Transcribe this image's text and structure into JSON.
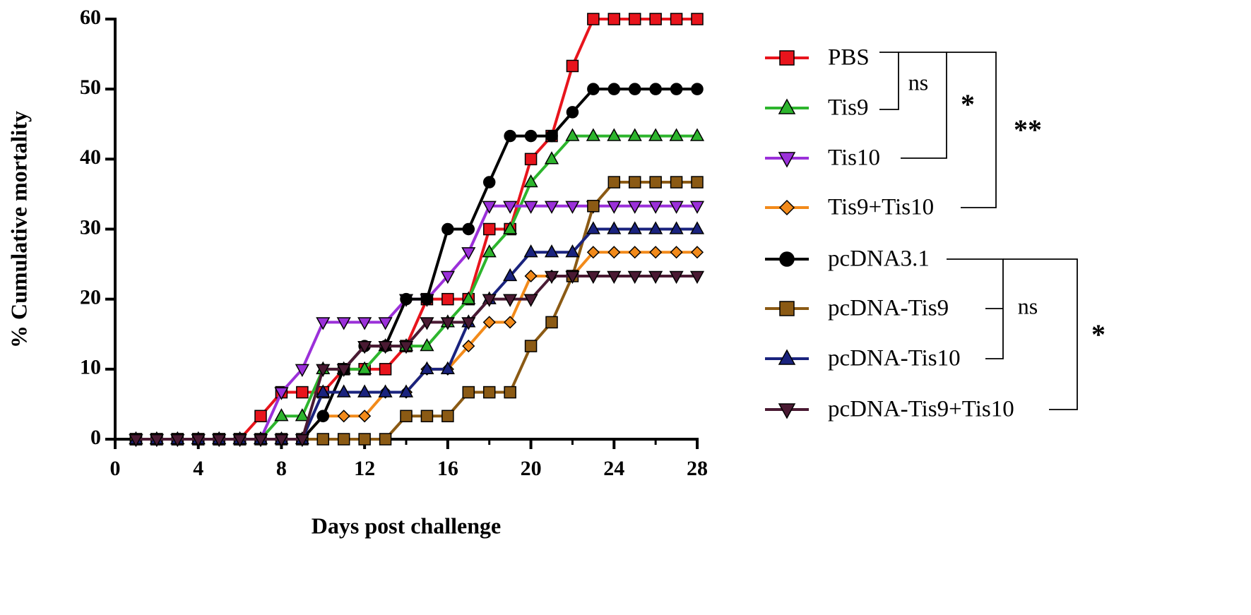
{
  "chart_data": {
    "type": "line",
    "x_label": "Days post challenge",
    "y_label": "% Cumulative mortality",
    "x": [
      1,
      2,
      3,
      4,
      5,
      6,
      7,
      8,
      9,
      10,
      11,
      12,
      13,
      14,
      15,
      16,
      17,
      18,
      19,
      20,
      21,
      22,
      23,
      24,
      25,
      26,
      27,
      28
    ],
    "xlim": [
      0,
      28
    ],
    "xticks": [
      0,
      4,
      8,
      12,
      16,
      20,
      24,
      28
    ],
    "ylim": [
      0,
      60
    ],
    "yticks": [
      0,
      10,
      20,
      30,
      40,
      50,
      60
    ],
    "legend": "right",
    "series": [
      {
        "name": "PBS",
        "color": "#e8141c",
        "marker": "square",
        "values": [
          0,
          0,
          0,
          0,
          0,
          0,
          3.3,
          6.7,
          6.7,
          6.7,
          10,
          10,
          10,
          13.3,
          20,
          20,
          20,
          30,
          30,
          40,
          43.3,
          53.3,
          60,
          60,
          60,
          60,
          60,
          60
        ]
      },
      {
        "name": "Tis9",
        "color": "#2db52d",
        "marker": "triangle-up",
        "values": [
          0,
          0,
          0,
          0,
          0,
          0,
          0,
          3.3,
          3.3,
          10,
          10,
          10,
          13.3,
          13.3,
          13.3,
          16.7,
          20,
          26.7,
          30,
          36.7,
          40,
          43.3,
          43.3,
          43.3,
          43.3,
          43.3,
          43.3,
          43.3
        ]
      },
      {
        "name": "Tis10",
        "color": "#9b30d9",
        "marker": "triangle-down",
        "values": [
          0,
          0,
          0,
          0,
          0,
          0,
          0,
          6.7,
          10,
          16.7,
          16.7,
          16.7,
          16.7,
          20,
          20,
          23.3,
          26.7,
          33.3,
          33.3,
          33.3,
          33.3,
          33.3,
          33.3,
          33.3,
          33.3,
          33.3,
          33.3,
          33.3
        ]
      },
      {
        "name": "Tis9+Tis10",
        "color": "#f28a1a",
        "marker": "diamond",
        "values": [
          0,
          0,
          0,
          0,
          0,
          0,
          0,
          0,
          0,
          3.3,
          3.3,
          3.3,
          6.7,
          6.7,
          10,
          10,
          13.3,
          16.7,
          16.7,
          23.3,
          23.3,
          23.3,
          26.7,
          26.7,
          26.7,
          26.7,
          26.7,
          26.7
        ]
      },
      {
        "name": "pcDNA3.1",
        "color": "#000000",
        "marker": "circle",
        "values": [
          0,
          0,
          0,
          0,
          0,
          0,
          0,
          0,
          0,
          3.3,
          10,
          13.3,
          13.3,
          20,
          20,
          30,
          30,
          36.7,
          43.3,
          43.3,
          43.3,
          46.7,
          50,
          50,
          50,
          50,
          50,
          50
        ]
      },
      {
        "name": "pcDNA-Tis9",
        "color": "#8b5a14",
        "marker": "square",
        "values": [
          0,
          0,
          0,
          0,
          0,
          0,
          0,
          0,
          0,
          0,
          0,
          0,
          0,
          3.3,
          3.3,
          3.3,
          6.7,
          6.7,
          6.7,
          13.3,
          16.7,
          23.3,
          33.3,
          36.7,
          36.7,
          36.7,
          36.7,
          36.7
        ]
      },
      {
        "name": "pcDNA-Tis10",
        "color": "#1a237e",
        "marker": "triangle-up",
        "values": [
          0,
          0,
          0,
          0,
          0,
          0,
          0,
          0,
          0,
          6.7,
          6.7,
          6.7,
          6.7,
          6.7,
          10,
          10,
          16.7,
          20,
          23.3,
          26.7,
          26.7,
          26.7,
          30,
          30,
          30,
          30,
          30,
          30
        ]
      },
      {
        "name": "pcDNA-Tis9+Tis10",
        "color": "#4a1a33",
        "marker": "triangle-down",
        "values": [
          0,
          0,
          0,
          0,
          0,
          0,
          0,
          0,
          0,
          10,
          10,
          13.3,
          13.3,
          13.3,
          16.7,
          16.7,
          16.7,
          20,
          20,
          20,
          23.3,
          23.3,
          23.3,
          23.3,
          23.3,
          23.3,
          23.3,
          23.3
        ]
      }
    ],
    "annotations": [
      "ns",
      "*",
      "**",
      "ns",
      "*"
    ]
  }
}
